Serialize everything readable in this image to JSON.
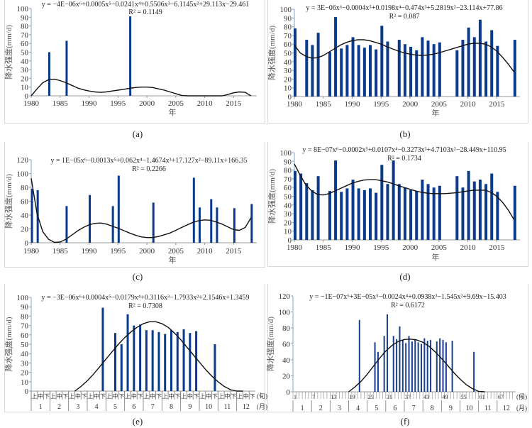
{
  "chart_data": [
    {
      "id": "a",
      "type": "bar",
      "caption": "(a)",
      "equation": "y = −4E−06x⁶+0.0005x⁵−0.0241x⁴+0.5506x³−6.1145x²+29.113x−29.461",
      "r2": "R² = 0.1149",
      "ylabel": "降水强度(mm/d)",
      "xlabel": "年",
      "ylim": [
        0,
        100
      ],
      "yticks": [
        0,
        10,
        20,
        30,
        40,
        50,
        60,
        70,
        80,
        90,
        100
      ],
      "xlim": [
        1980,
        2019
      ],
      "xticks": [
        1980,
        1985,
        1990,
        1995,
        2000,
        2005,
        2010,
        2015
      ],
      "x": [
        1983,
        1986,
        1997
      ],
      "values": [
        50,
        63,
        91
      ],
      "trend": {
        "x": [
          1980,
          1981,
          1982,
          1983,
          1984,
          1985,
          1986,
          1987,
          1988,
          1989,
          1990,
          1991,
          1992,
          1993,
          1994,
          1995,
          1996,
          1997,
          1998,
          1999,
          2000,
          2001,
          2002,
          2003,
          2004,
          2005,
          2006,
          2007,
          2013,
          2014,
          2015,
          2016,
          2017,
          2018
        ],
        "y": [
          0,
          8,
          15,
          18.5,
          19,
          17.5,
          15,
          12,
          9,
          7,
          5.5,
          4.5,
          4,
          4.5,
          5.5,
          6.5,
          7.5,
          8.5,
          9.5,
          10,
          10,
          9.5,
          8,
          6.5,
          4.5,
          2.5,
          0.5,
          0,
          0,
          1.5,
          3.5,
          4.5,
          4,
          0
        ]
      },
      "bar_color": "#0a3a8c"
    },
    {
      "id": "b",
      "type": "bar",
      "caption": "(b)",
      "equation": "y = 3E−06x⁶−0.0004x⁵+0.0198x⁴−0.474x³+5.2819x²−23.114x+77.86",
      "r2": "R² = 0.087",
      "ylabel": "降水强度(mm/d)",
      "xlabel": "年",
      "ylim": [
        0,
        100
      ],
      "yticks": [
        0,
        10,
        20,
        30,
        40,
        50,
        60,
        70,
        80,
        90,
        100
      ],
      "xlim": [
        1980,
        2019
      ],
      "xticks": [
        1980,
        1985,
        1990,
        1995,
        2000,
        2005,
        2010,
        2015
      ],
      "x": [
        1980,
        1982,
        1983,
        1984,
        1986,
        1987,
        1988,
        1989,
        1990,
        1991,
        1992,
        1993,
        1994,
        1995,
        1996,
        1998,
        1999,
        2000,
        2001,
        2002,
        2003,
        2004,
        2005,
        2008,
        2009,
        2010,
        2011,
        2012,
        2013,
        2014,
        2015,
        2018
      ],
      "values": [
        78,
        65,
        59,
        73,
        51,
        91,
        55,
        59,
        68,
        59,
        56,
        59,
        54,
        81,
        63,
        65,
        60,
        57,
        53,
        68,
        64,
        60,
        62,
        53,
        65,
        79,
        68,
        88,
        63,
        76,
        58,
        65
      ],
      "trend": {
        "x": [
          1980,
          1981,
          1982,
          1983,
          1984,
          1985,
          1986,
          1987,
          1988,
          1989,
          1990,
          1991,
          1992,
          1993,
          1994,
          1995,
          1996,
          1997,
          1998,
          1999,
          2000,
          2001,
          2002,
          2003,
          2004,
          2005,
          2006,
          2007,
          2008,
          2009,
          2010,
          2011,
          2012,
          2013,
          2014,
          2015,
          2016,
          2017,
          2018
        ],
        "y": [
          59,
          50,
          46,
          44,
          44.5,
          47,
          51,
          55,
          59,
          62,
          64,
          65,
          65,
          64,
          62,
          60,
          57,
          54.5,
          52,
          50,
          48.5,
          47.5,
          47,
          47.5,
          48.5,
          50,
          52,
          54,
          56,
          58,
          60,
          61,
          61,
          60,
          57,
          52,
          45,
          37,
          28
        ]
      },
      "bar_color": "#0a3a8c"
    },
    {
      "id": "c",
      "type": "bar",
      "caption": "(c)",
      "equation": "y = 1E−05x⁶−0.0013x⁵+0.062x⁴−1.4674x³+17.127x²−89.11x+166.35",
      "r2": "R² = 0.2266",
      "ylabel": "降水强度(mm/d)",
      "xlabel": "年",
      "ylim": [
        0,
        120
      ],
      "yticks": [
        0,
        20,
        40,
        60,
        80,
        100,
        120
      ],
      "xlim": [
        1980,
        2019
      ],
      "xticks": [
        1980,
        1985,
        1990,
        1995,
        2000,
        2005,
        2010,
        2015
      ],
      "x": [
        1980,
        1981,
        1986,
        1990,
        1994,
        1995,
        2001,
        2008,
        2009,
        2011,
        2012,
        2015,
        2018
      ],
      "values": [
        78,
        76,
        53,
        69,
        53,
        97,
        58,
        94,
        51,
        63,
        51,
        50,
        56
      ],
      "trend": {
        "x": [
          1980,
          1981,
          1982,
          1983,
          1984,
          1985,
          1986,
          1987,
          1988,
          1989,
          1990,
          1991,
          1992,
          1993,
          1994,
          1995,
          1996,
          1997,
          1998,
          1999,
          2000,
          2001,
          2002,
          2003,
          2004,
          2005,
          2006,
          2007,
          2008,
          2009,
          2010,
          2011,
          2012,
          2013,
          2014,
          2015,
          2016,
          2017,
          2018
        ],
        "y": [
          93,
          42,
          16,
          5,
          0.5,
          1,
          5,
          11,
          17,
          22,
          26,
          28,
          28.5,
          27,
          24,
          21,
          17.5,
          14,
          11,
          8.5,
          7.5,
          7.5,
          9,
          11.5,
          14,
          18,
          22,
          26,
          29.5,
          32,
          33,
          32.5,
          30,
          27,
          23,
          19,
          18,
          22,
          36
        ]
      },
      "bar_color": "#0a3a8c"
    },
    {
      "id": "d",
      "type": "bar",
      "caption": "(d)",
      "equation": "y = 8E−07x⁶−0.0002x⁵+0.0107x⁴−0.3273x³+4.7103x²−28.449x+110.95",
      "r2": "R² = 0.1734",
      "ylabel": "降水强度(mm/d)",
      "xlabel": "年",
      "ylim": [
        0,
        100
      ],
      "yticks": [
        0,
        10,
        20,
        30,
        40,
        50,
        60,
        70,
        80,
        90,
        100
      ],
      "xlim": [
        1980,
        2019
      ],
      "xticks": [
        1980,
        1985,
        1990,
        1995,
        2000,
        2005,
        2010,
        2015
      ],
      "x": [
        1980,
        1981,
        1982,
        1983,
        1984,
        1986,
        1987,
        1988,
        1989,
        1990,
        1991,
        1992,
        1993,
        1994,
        1995,
        1996,
        1997,
        1998,
        1999,
        2000,
        2001,
        2002,
        2003,
        2004,
        2005,
        2008,
        2009,
        2010,
        2011,
        2012,
        2013,
        2014,
        2015,
        2018
      ],
      "values": [
        79,
        76,
        65,
        57,
        73,
        56,
        91,
        55,
        59,
        69,
        59,
        57,
        59,
        54,
        86,
        64,
        91,
        64,
        60,
        57,
        56,
        69,
        64,
        60,
        62,
        73,
        60,
        79,
        67,
        69,
        64,
        76,
        55,
        62
      ],
      "trend": {
        "x": [
          1980,
          1981,
          1982,
          1983,
          1984,
          1985,
          1986,
          1987,
          1988,
          1989,
          1990,
          1991,
          1992,
          1993,
          1994,
          1995,
          1996,
          1997,
          1998,
          1999,
          2000,
          2001,
          2002,
          2003,
          2004,
          2005,
          2006,
          2007,
          2008,
          2009,
          2010,
          2011,
          2012,
          2013,
          2014,
          2015,
          2016,
          2017,
          2018
        ],
        "y": [
          87,
          74,
          63,
          56,
          52,
          51.5,
          53,
          56,
          59,
          62,
          65,
          67,
          68.5,
          69,
          69,
          68,
          66.5,
          64.5,
          62,
          60,
          58,
          56,
          54.5,
          53.5,
          53,
          53,
          53,
          53.5,
          54,
          55,
          56,
          57,
          57,
          57,
          54.5,
          50,
          43,
          34,
          23
        ]
      },
      "bar_color": "#0a3a8c"
    },
    {
      "id": "e",
      "type": "bar",
      "caption": "(e)",
      "equation": "y = −3E−06x⁶+0.0004x⁵−0.0179x⁴+0.3116x³−1.7933x²+2.1546x+1.3459",
      "r2": "R² = 0.7308",
      "ylabel": "降水强度(mm/d)",
      "ylim": [
        0,
        100
      ],
      "yticks": [
        0,
        10,
        20,
        30,
        40,
        50,
        60,
        70,
        80,
        90,
        100
      ],
      "xlim": [
        0,
        36
      ],
      "dekad_labels": [
        "上",
        "中",
        "下"
      ],
      "dekad_unit": "(旬)",
      "month_labels": [
        "1",
        "2",
        "3",
        "4",
        "5",
        "6",
        "7",
        "8",
        "9",
        "10",
        "11",
        "12"
      ],
      "month_unit": "(月)",
      "x": [
        12,
        14,
        15,
        16,
        17,
        18,
        19,
        20,
        21,
        22,
        23,
        24,
        25,
        26,
        27,
        30
      ],
      "values": [
        89,
        62,
        50,
        82,
        70,
        71,
        65,
        65,
        63,
        61,
        65,
        63,
        66,
        62,
        64,
        50
      ],
      "trend": {
        "x": [
          7,
          8,
          9,
          10,
          11,
          12,
          13,
          14,
          15,
          16,
          17,
          18,
          19,
          20,
          21,
          22,
          23,
          24,
          25,
          26,
          27,
          28,
          29,
          30,
          31,
          32,
          33,
          34
        ],
        "y": [
          0,
          5,
          11,
          18,
          26,
          34,
          42,
          50,
          57,
          63,
          68,
          72,
          74,
          74,
          72,
          68,
          62,
          55,
          47,
          39,
          31,
          23,
          16,
          10,
          5,
          1.5,
          0,
          0
        ]
      },
      "bar_color": "#0a3a8c"
    },
    {
      "id": "f",
      "type": "bar",
      "caption": "(f)",
      "equation": "y = −1E−07x⁶+3E−05x⁵−0.0024x⁴+0.0938x³−1.545x²+9.69x−15.403",
      "r2": "R² = 0.6172",
      "ylabel": "降水强度(mm/d)",
      "ylim": [
        0,
        120
      ],
      "yticks": [
        0,
        20,
        40,
        60,
        80,
        100,
        120
      ],
      "xlim": [
        0,
        72
      ],
      "pentad_ticks": [
        "1",
        "7",
        "13",
        "19",
        "25",
        "31",
        "37",
        "43",
        "49",
        "55",
        "61",
        "67"
      ],
      "pentad_unit": "(候)",
      "month_labels": [
        "1",
        "2",
        "3",
        "4",
        "5",
        "6",
        "7",
        "8",
        "9",
        "10",
        "11",
        "12"
      ],
      "month_unit": "(月)",
      "x": [
        22,
        27,
        28,
        30,
        31,
        33,
        34,
        35,
        36,
        37,
        38,
        39,
        40,
        41,
        42,
        43,
        44,
        45,
        47,
        48,
        49,
        50,
        52,
        59
      ],
      "values": [
        90,
        62,
        50,
        70,
        97,
        70,
        66,
        82,
        65,
        61,
        70,
        63,
        66,
        62,
        60,
        67,
        64,
        65,
        63,
        67,
        65,
        62,
        64,
        50
      ],
      "trend": {
        "x": [
          18,
          20,
          22,
          24,
          26,
          28,
          30,
          32,
          34,
          36,
          38,
          40,
          42,
          44,
          46,
          48,
          50,
          52,
          54,
          56,
          58,
          60,
          62
        ],
        "y": [
          0,
          6,
          13,
          22,
          32,
          42,
          51,
          58,
          63,
          65.5,
          66,
          65,
          62,
          57,
          50,
          42,
          33,
          24,
          16,
          9,
          4,
          0.5,
          0
        ]
      },
      "bar_color": "#1a3f8a"
    }
  ]
}
